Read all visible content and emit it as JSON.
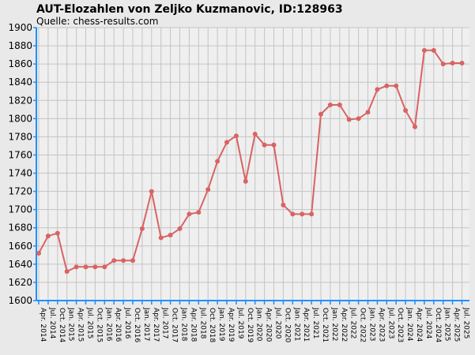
{
  "chart_data": {
    "type": "line",
    "title": "AUT-Elozahlen von Zeljko Kuzmanovic, ID:128963",
    "subtitle": "Quelle: chess-results.com",
    "xlabel": "",
    "ylabel": "",
    "ylim": [
      1600,
      1900
    ],
    "ystep": 20,
    "grid": true,
    "colors": {
      "line": "#d96363",
      "axis": "#1e90ff",
      "grid": "#c4c4c4",
      "plot_bg": "#efefef"
    },
    "categories": [
      "Apr. 2014",
      "Jul. 2014",
      "Oct. 2014",
      "Jan. 2015",
      "Apr. 2015",
      "Jul. 2015",
      "Oct. 2015",
      "Jan. 2016",
      "Apr. 2016",
      "Jul. 2016",
      "Oct. 2016",
      "Jan. 2017",
      "Apr. 2017",
      "Jul. 2017",
      "Oct. 2017",
      "Jan. 2018",
      "Apr. 2018",
      "Jul. 2018",
      "Oct. 2018",
      "Jan. 2019",
      "Apr. 2019",
      "Jul. 2019",
      "Oct. 2019",
      "Jan. 2020",
      "Apr. 2020",
      "Jul. 2020",
      "Oct. 2020",
      "Jan. 2021",
      "Apr. 2021",
      "Jul. 2021",
      "Oct. 2021",
      "Jan. 2022",
      "Apr. 2022",
      "Jul. 2022",
      "Oct. 2022",
      "Jan. 2023",
      "Apr. 2023",
      "Jul. 2023",
      "Oct. 2023",
      "Jan. 2024",
      "Apr. 2024",
      "Jul. 2024",
      "Oct. 2024",
      "Jan. 2025",
      "Apr. 2025",
      "Jul. 2025"
    ],
    "series": [
      {
        "values": [
          1652,
          1671,
          1674,
          1632,
          1637,
          1637,
          1637,
          1637,
          1644,
          1644,
          1644,
          1679,
          1720,
          1669,
          1672,
          1679,
          1695,
          1697,
          1722,
          1753,
          1774,
          1781,
          1731,
          1783,
          1771,
          1771,
          1705,
          1695,
          1695,
          1695,
          1805,
          1815,
          1815,
          1799,
          1800,
          1807,
          1832,
          1836,
          1836,
          1809,
          1791,
          1875,
          1875,
          1860,
          1861,
          1861
        ]
      }
    ]
  }
}
